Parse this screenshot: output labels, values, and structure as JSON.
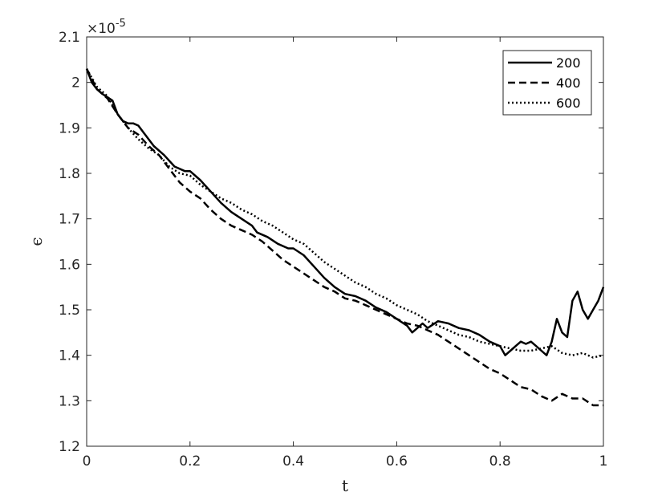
{
  "chart_data": {
    "type": "line",
    "title": "",
    "xlabel": "t",
    "ylabel": "ϵ",
    "multiplier": "×10",
    "multiplier_exp": "-5",
    "xlim": [
      0,
      1
    ],
    "ylim": [
      1.2,
      2.1
    ],
    "xticks": [
      "0",
      "0.2",
      "0.4",
      "0.6",
      "0.8",
      "1"
    ],
    "yticks": [
      "1.2",
      "1.3",
      "1.4",
      "1.5",
      "1.6",
      "1.7",
      "1.8",
      "1.9",
      "2",
      "2.1"
    ],
    "legend_position": "top-right",
    "grid": false,
    "series": [
      {
        "name": "200",
        "style": "solid",
        "x": [
          0,
          0.01,
          0.02,
          0.03,
          0.05,
          0.06,
          0.07,
          0.08,
          0.09,
          0.1,
          0.11,
          0.13,
          0.15,
          0.17,
          0.19,
          0.2,
          0.22,
          0.24,
          0.26,
          0.28,
          0.3,
          0.32,
          0.33,
          0.35,
          0.37,
          0.39,
          0.4,
          0.42,
          0.44,
          0.46,
          0.48,
          0.5,
          0.52,
          0.54,
          0.56,
          0.58,
          0.6,
          0.62,
          0.63,
          0.64,
          0.65,
          0.66,
          0.68,
          0.7,
          0.72,
          0.74,
          0.76,
          0.78,
          0.8,
          0.81,
          0.82,
          0.83,
          0.84,
          0.85,
          0.86,
          0.87,
          0.88,
          0.89,
          0.9,
          0.91,
          0.92,
          0.93,
          0.94,
          0.95,
          0.96,
          0.97,
          0.98,
          0.99,
          1.0
        ],
        "values": [
          2.03,
          2.0,
          1.985,
          1.975,
          1.96,
          1.93,
          1.915,
          1.91,
          1.91,
          1.905,
          1.89,
          1.86,
          1.84,
          1.815,
          1.805,
          1.805,
          1.785,
          1.76,
          1.735,
          1.715,
          1.7,
          1.685,
          1.67,
          1.66,
          1.645,
          1.635,
          1.635,
          1.62,
          1.595,
          1.57,
          1.55,
          1.535,
          1.53,
          1.52,
          1.505,
          1.495,
          1.48,
          1.465,
          1.45,
          1.46,
          1.47,
          1.46,
          1.475,
          1.47,
          1.46,
          1.455,
          1.445,
          1.43,
          1.42,
          1.4,
          1.41,
          1.42,
          1.43,
          1.425,
          1.43,
          1.42,
          1.41,
          1.4,
          1.43,
          1.48,
          1.45,
          1.44,
          1.52,
          1.54,
          1.5,
          1.48,
          1.5,
          1.52,
          1.55
        ]
      },
      {
        "name": "400",
        "style": "dashed",
        "x": [
          0,
          0.02,
          0.04,
          0.06,
          0.08,
          0.1,
          0.12,
          0.14,
          0.16,
          0.18,
          0.2,
          0.22,
          0.24,
          0.26,
          0.28,
          0.3,
          0.32,
          0.34,
          0.36,
          0.38,
          0.4,
          0.42,
          0.44,
          0.46,
          0.48,
          0.5,
          0.52,
          0.54,
          0.56,
          0.58,
          0.6,
          0.62,
          0.64,
          0.66,
          0.68,
          0.7,
          0.72,
          0.74,
          0.76,
          0.78,
          0.8,
          0.82,
          0.84,
          0.86,
          0.88,
          0.9,
          0.92,
          0.94,
          0.96,
          0.98,
          1.0
        ],
        "values": [
          2.03,
          1.985,
          1.965,
          1.93,
          1.9,
          1.885,
          1.86,
          1.84,
          1.81,
          1.78,
          1.76,
          1.745,
          1.72,
          1.7,
          1.685,
          1.675,
          1.665,
          1.65,
          1.63,
          1.61,
          1.595,
          1.58,
          1.565,
          1.55,
          1.54,
          1.525,
          1.52,
          1.51,
          1.5,
          1.49,
          1.48,
          1.47,
          1.465,
          1.455,
          1.445,
          1.43,
          1.415,
          1.4,
          1.385,
          1.37,
          1.36,
          1.345,
          1.33,
          1.325,
          1.31,
          1.3,
          1.315,
          1.305,
          1.305,
          1.29,
          1.29
        ]
      },
      {
        "name": "600",
        "style": "dotted",
        "x": [
          0,
          0.02,
          0.04,
          0.06,
          0.08,
          0.1,
          0.12,
          0.14,
          0.16,
          0.18,
          0.2,
          0.22,
          0.24,
          0.26,
          0.28,
          0.3,
          0.32,
          0.34,
          0.36,
          0.38,
          0.4,
          0.42,
          0.44,
          0.46,
          0.48,
          0.5,
          0.52,
          0.54,
          0.56,
          0.58,
          0.6,
          0.62,
          0.64,
          0.66,
          0.68,
          0.7,
          0.72,
          0.74,
          0.76,
          0.78,
          0.8,
          0.82,
          0.84,
          0.86,
          0.88,
          0.9,
          0.92,
          0.94,
          0.96,
          0.98,
          1.0
        ],
        "values": [
          2.03,
          1.99,
          1.97,
          1.93,
          1.9,
          1.875,
          1.855,
          1.84,
          1.815,
          1.8,
          1.795,
          1.775,
          1.76,
          1.745,
          1.735,
          1.72,
          1.71,
          1.695,
          1.685,
          1.67,
          1.655,
          1.645,
          1.625,
          1.605,
          1.59,
          1.575,
          1.56,
          1.55,
          1.535,
          1.525,
          1.51,
          1.5,
          1.49,
          1.475,
          1.465,
          1.455,
          1.445,
          1.44,
          1.43,
          1.425,
          1.42,
          1.415,
          1.41,
          1.41,
          1.415,
          1.42,
          1.405,
          1.4,
          1.405,
          1.395,
          1.4
        ]
      }
    ]
  }
}
